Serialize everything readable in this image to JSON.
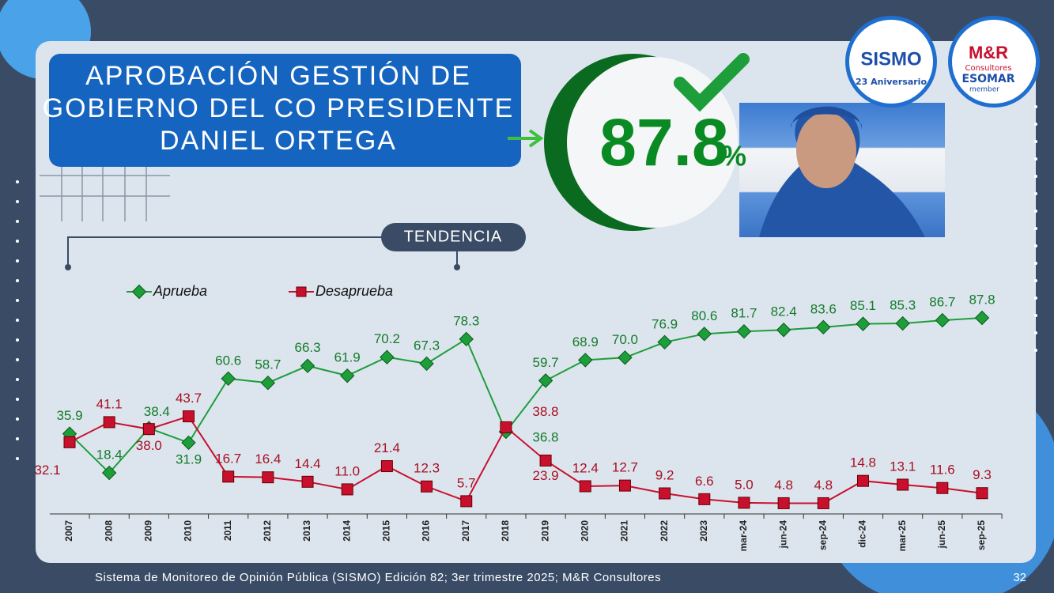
{
  "chart_data": {
    "type": "line",
    "title": [
      "APROBACIÓN GESTIÓN DE",
      "GOBIERNO DEL CO PRESIDENTE",
      "DANIEL ORTEGA"
    ],
    "headline": 87.8,
    "headline_unit": "%",
    "subtitle": "TENDENCIA",
    "categories": [
      "2007",
      "2008",
      "2009",
      "2010",
      "2011",
      "2012",
      "2013",
      "2014",
      "2015",
      "2016",
      "2017",
      "2018",
      "2019",
      "2020",
      "2021",
      "2022",
      "2023",
      "mar-24",
      "jun-24",
      "sep-24",
      "dic-24",
      "mar-25",
      "jun-25",
      "sep-25"
    ],
    "series": [
      {
        "name": "Aprueba",
        "color": "#1e9e3a",
        "values": [
          35.9,
          18.4,
          38.4,
          31.9,
          60.6,
          58.7,
          66.3,
          61.9,
          70.2,
          67.3,
          78.3,
          36.8,
          59.7,
          68.9,
          70.0,
          76.9,
          80.6,
          81.7,
          82.4,
          83.6,
          85.1,
          85.3,
          86.7,
          87.8
        ],
        "value_labels": [
          "35.9",
          "18.4",
          "38.4",
          "31.9",
          "60.6",
          "58.7",
          "66.3",
          "61.9",
          "70.2",
          "67.3",
          "78.3",
          "36.8",
          "59.7",
          "68.9",
          "70.0",
          "76.9",
          "80.6",
          "81.7",
          "82.4",
          "83.6",
          "85.1",
          "85.3",
          "86.7",
          "87.8"
        ]
      },
      {
        "name": "Desaprueba",
        "color": "#c8102e",
        "values": [
          32.1,
          41.1,
          38.0,
          43.7,
          16.7,
          16.4,
          14.4,
          11.0,
          21.4,
          12.3,
          5.7,
          38.8,
          23.9,
          12.4,
          12.7,
          9.2,
          6.6,
          5.0,
          4.8,
          4.8,
          14.8,
          13.1,
          11.6,
          9.3
        ],
        "value_labels": [
          "32.1",
          "41.1",
          "38.0",
          "43.7",
          "16.7",
          "16.4",
          "14.4",
          "11.0",
          "21.4",
          "12.3",
          "5.7",
          "38.8",
          "23.9",
          "12.4",
          "12.7",
          "9.2",
          "6.6",
          "5.0",
          "4.8",
          "4.8",
          "14.8",
          "13.1",
          "11.6",
          "9.3"
        ]
      }
    ],
    "legend": "top-left",
    "footer": "Sistema de Monitoreo de Opinión Pública (SISMO) Edición 82; 3er trimestre 2025; M&R Consultores",
    "page_number": "32",
    "logos": {
      "sismo": "SISMO",
      "sismo_sub": "23 Aniversario",
      "mr": "M&R",
      "mr_sub": "Consultores",
      "esomar": "ESOMAR",
      "esomar_sub": "member"
    }
  }
}
